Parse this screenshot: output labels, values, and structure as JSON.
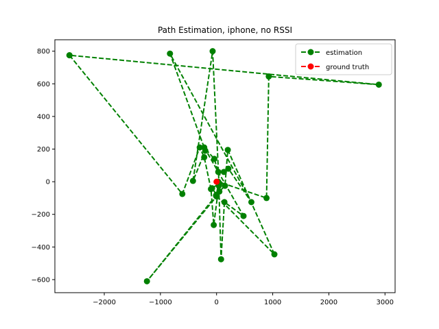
{
  "chart_data": {
    "type": "line",
    "title": "Path Estimation, iphone, no RSSI",
    "xlabel": "",
    "ylabel": "",
    "xlim": [
      -2880,
      3180
    ],
    "ylim": [
      -680,
      870
    ],
    "xticks": [
      -2000,
      -1000,
      0,
      1000,
      2000,
      3000
    ],
    "yticks": [
      -600,
      -400,
      -200,
      0,
      200,
      400,
      600,
      800
    ],
    "xtick_labels": [
      "−2000",
      "−1000",
      "0",
      "1000",
      "2000",
      "3000"
    ],
    "ytick_labels": [
      "−600",
      "−400",
      "−200",
      "0",
      "200",
      "400",
      "600",
      "800"
    ],
    "grid": false,
    "legend_position": "top-right",
    "series": [
      {
        "name": "estimation",
        "color": "#008000",
        "line_style": "dashed",
        "marker": "circle",
        "points": [
          [
            -2620,
            775
          ],
          [
            -610,
            -75
          ],
          [
            -300,
            210
          ],
          [
            -220,
            150
          ],
          [
            -100,
            -45
          ],
          [
            -50,
            -265
          ],
          [
            40,
            -25
          ],
          [
            80,
            -475
          ],
          [
            140,
            -125
          ],
          [
            480,
            -210
          ],
          [
            -220,
            210
          ],
          [
            -40,
            140
          ],
          [
            30,
            60
          ],
          [
            130,
            60
          ],
          [
            210,
            80
          ],
          [
            620,
            -125
          ],
          [
            -830,
            785
          ],
          [
            -200,
            190
          ],
          [
            -420,
            5
          ],
          [
            -70,
            800
          ],
          [
            50,
            -60
          ],
          [
            150,
            -25
          ],
          [
            200,
            195
          ],
          [
            1030,
            -445
          ],
          [
            -10,
            -85
          ],
          [
            50,
            -10
          ],
          [
            -80,
            -40
          ],
          [
            0,
            -80
          ],
          [
            -1240,
            -610
          ],
          [
            0,
            -90
          ],
          [
            30,
            0
          ],
          [
            890,
            -100
          ],
          [
            930,
            645
          ],
          [
            2890,
            595
          ],
          [
            -2620,
            775
          ]
        ]
      },
      {
        "name": "ground truth",
        "color": "#ff0000",
        "line_style": "dashed",
        "marker": "circle",
        "points": [
          [
            0,
            0
          ]
        ]
      }
    ]
  }
}
